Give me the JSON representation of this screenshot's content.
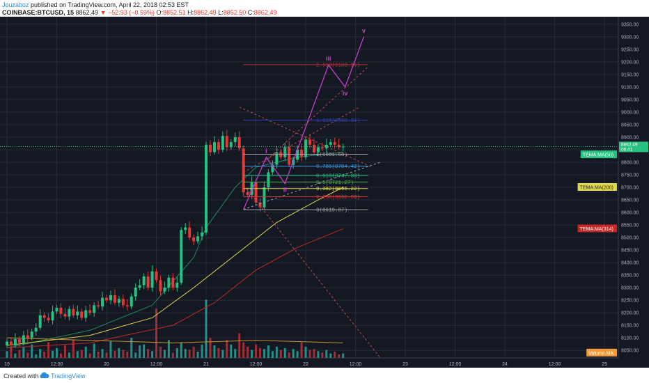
{
  "header": {
    "author": "Jouzaboz",
    "published": " published on TradingView.com, April 22, 2018 02:53 EST",
    "symbol": "COINBASE:BTCUSD, 15",
    "price": "8862.49",
    "change": "▼ −52.93 (−0.59%)",
    "ohlc": {
      "o_label": "O:",
      "o": "8852.51",
      "h_label": "H:",
      "h": "8862.49",
      "l_label": "L:",
      "l": "8852.50",
      "c_label": "C:",
      "c": "8862.49"
    }
  },
  "footer": {
    "created": "Created with",
    "brand": "TradingView"
  },
  "colors": {
    "bg": "#141823",
    "grid": "#262b38",
    "up": "#26c281",
    "down": "#e53935",
    "tema50": "#26c281",
    "tema200": "#e0d84a",
    "tema314": "#c62828",
    "volume": "#26a69a",
    "wave": "#c83ed0"
  },
  "chart_data": {
    "type": "candlestick",
    "title": "",
    "ylim": [
      8020,
      9380
    ],
    "y_ticks": [
      "8050.00",
      "8100.00",
      "8150.00",
      "8200.00",
      "8250.00",
      "8300.00",
      "8350.00",
      "8400.00",
      "8450.00",
      "8500.00",
      "8550.00",
      "8600.00",
      "8650.00",
      "8700.00",
      "8750.00",
      "8800.00",
      "8850.00",
      "8900.00",
      "8950.00",
      "9000.00",
      "9050.00",
      "9100.00",
      "9150.00",
      "9200.00",
      "9250.00",
      "9300.00",
      "9350.00"
    ],
    "x_ticks": [
      {
        "t": 0,
        "label": "19"
      },
      {
        "t": 12,
        "label": "12:00"
      },
      {
        "t": 24,
        "label": "20"
      },
      {
        "t": 36,
        "label": "12:00"
      },
      {
        "t": 48,
        "label": "21"
      },
      {
        "t": 60,
        "label": "12:00"
      },
      {
        "t": 72,
        "label": "22"
      },
      {
        "t": 84,
        "label": "12:00"
      },
      {
        "t": 96,
        "label": "23"
      },
      {
        "t": 108,
        "label": "12:00"
      },
      {
        "t": 120,
        "label": "24"
      },
      {
        "t": 132,
        "label": "12:00"
      },
      {
        "t": 144,
        "label": "25"
      }
    ],
    "last_price": {
      "value": 8862.49,
      "label": "8862.49",
      "countdown": "06:41"
    },
    "candles_close": [
      8085,
      8070,
      8095,
      8080,
      8110,
      8100,
      8125,
      8140,
      8190,
      8180,
      8170,
      8205,
      8220,
      8195,
      8185,
      8215,
      8190,
      8205,
      8180,
      8210,
      8200,
      8230,
      8225,
      8260,
      8250,
      8270,
      8240,
      8255,
      8230,
      8225,
      8265,
      8300,
      8310,
      8345,
      8300,
      8365,
      8330,
      8285,
      8300,
      8340,
      8300,
      8320,
      8530,
      8540,
      8500,
      8485,
      8505,
      8520,
      8870,
      8840,
      8880,
      8850,
      8905,
      8860,
      8880,
      8900,
      8855,
      8680,
      8670,
      8720,
      8640,
      8620,
      8700,
      8760,
      8790,
      8840,
      8820,
      8860,
      8790,
      8810,
      8850,
      8820,
      8890,
      8870,
      8840,
      8860,
      8855,
      8870,
      8880,
      8870,
      8860,
      8862
    ],
    "volume": [
      15,
      22,
      10,
      18,
      25,
      12,
      30,
      8,
      20,
      14,
      35,
      16,
      22,
      10,
      28,
      12,
      40,
      15,
      18,
      25,
      10,
      32,
      14,
      20,
      12,
      38,
      16,
      22,
      18,
      14,
      45,
      12,
      28,
      30,
      20,
      15,
      110,
      25,
      18,
      40,
      12,
      22,
      35,
      20,
      18,
      25,
      14,
      30,
      130,
      45,
      28,
      22,
      18,
      40,
      30,
      20,
      55,
      35,
      25,
      18,
      30,
      22,
      20,
      28,
      15,
      25,
      18,
      22,
      12,
      20,
      15,
      35,
      25,
      18,
      20,
      15,
      12,
      18,
      10,
      14,
      8,
      10
    ],
    "fib": [
      {
        "level": "1",
        "label": "1(8831.68)",
        "value": 8831.68,
        "color": "#a0a4ad"
      },
      {
        "level": "0.786",
        "label": "0.786(8784.42)",
        "value": 8784.42,
        "color": "#3d9be9"
      },
      {
        "level": "0.618",
        "label": "0.618(8747.33)",
        "value": 8747.33,
        "color": "#26c281"
      },
      {
        "level": "0.5",
        "label": "0.5(8721.27)",
        "value": 8721.27,
        "color": "#4caf50"
      },
      {
        "level": "0.382",
        "label": "0.382(8695.22)",
        "value": 8695.22,
        "color": "#e0d84a"
      },
      {
        "level": "0.236",
        "label": "0.236(8662.98)",
        "value": 8662.98,
        "color": "#e53935"
      },
      {
        "level": "0",
        "label": "0(8610.87)",
        "value": 8610.87,
        "color": "#a0a4ad"
      },
      {
        "level": "1.618",
        "label": "1.618(8968.34)",
        "value": 8968.34,
        "color": "#3347b0"
      },
      {
        "level": "2.618",
        "label": "2.618(9188.95)",
        "value": 9188.95,
        "color": "#b83232"
      }
    ],
    "waves": [
      {
        "label": "i",
        "t": 62.5,
        "value": 8820
      },
      {
        "label": "ii",
        "t": 67,
        "value": 8715
      },
      {
        "label": "iii",
        "t": 77.5,
        "value": 9188
      },
      {
        "label": "iv",
        "t": 81.5,
        "value": 9100
      },
      {
        "label": "v",
        "t": 86,
        "value": 9300
      }
    ],
    "wave_origin": {
      "t": 57,
      "value": 8612
    },
    "indicators": [
      {
        "name": "TEMA:MA(50)",
        "value": 8830,
        "color": "#26c281"
      },
      {
        "name": "TEMA:MA(200)",
        "value": 8700,
        "color": "#e0d84a"
      },
      {
        "name": "TEMA:MA(314)",
        "value": 8535,
        "color": "#c62828"
      },
      {
        "name": "Volume MA",
        "value": 8040,
        "color": "#f29a3a"
      }
    ]
  }
}
